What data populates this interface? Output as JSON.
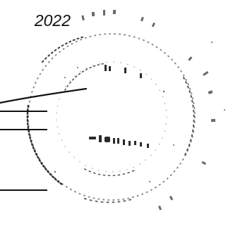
{
  "document": {
    "date_fragment": "2022"
  },
  "stamp": {
    "style": "faded circular rubber stamp",
    "ink_color": "#333333"
  }
}
